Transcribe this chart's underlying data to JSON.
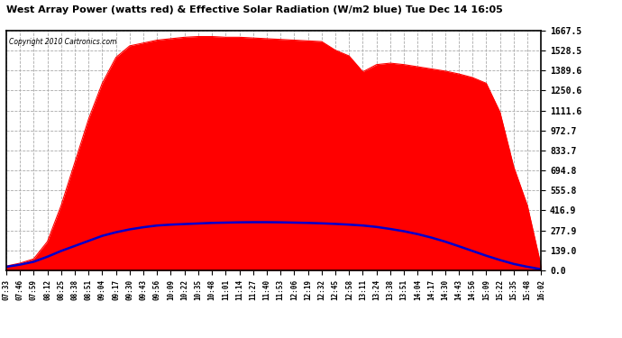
{
  "title": "West Array Power (watts red) & Effective Solar Radiation (W/m2 blue) Tue Dec 14 16:05",
  "copyright": "Copyright 2010 Cartronics.com",
  "background_color": "#ffffff",
  "plot_bg_color": "#ffffff",
  "grid_color": "#aaaaaa",
  "y_ticks": [
    0.0,
    139.0,
    277.9,
    416.9,
    555.8,
    694.8,
    833.7,
    972.7,
    1111.6,
    1250.6,
    1389.6,
    1528.5,
    1667.5
  ],
  "y_max": 1667.5,
  "fill_color": "#ff0000",
  "line_color": "#0000cc",
  "time_labels": [
    "07:33",
    "07:46",
    "07:59",
    "08:12",
    "08:25",
    "08:38",
    "08:51",
    "09:04",
    "09:17",
    "09:30",
    "09:43",
    "09:56",
    "10:09",
    "10:22",
    "10:35",
    "10:48",
    "11:01",
    "11:14",
    "11:27",
    "11:40",
    "11:53",
    "12:06",
    "12:19",
    "12:32",
    "12:45",
    "12:58",
    "13:11",
    "13:24",
    "13:38",
    "13:51",
    "14:04",
    "14:17",
    "14:30",
    "14:43",
    "14:56",
    "15:09",
    "15:22",
    "15:35",
    "15:48",
    "16:02"
  ],
  "power_data": [
    30,
    50,
    80,
    200,
    450,
    750,
    1050,
    1300,
    1480,
    1560,
    1580,
    1600,
    1610,
    1620,
    1625,
    1625,
    1620,
    1620,
    1615,
    1610,
    1605,
    1600,
    1595,
    1590,
    1530,
    1490,
    1380,
    1430,
    1440,
    1430,
    1415,
    1400,
    1385,
    1365,
    1340,
    1300,
    1100,
    720,
    450,
    30
  ],
  "radiation_data": [
    25,
    40,
    60,
    95,
    135,
    170,
    205,
    240,
    265,
    285,
    300,
    312,
    318,
    322,
    326,
    330,
    332,
    334,
    335,
    335,
    334,
    332,
    330,
    327,
    323,
    318,
    312,
    302,
    288,
    272,
    252,
    228,
    200,
    168,
    135,
    102,
    72,
    45,
    25,
    8
  ]
}
